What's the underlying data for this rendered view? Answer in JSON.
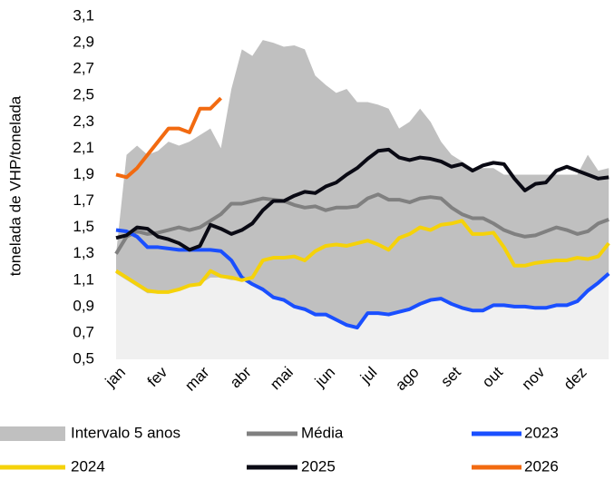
{
  "chart_data": {
    "type": "line",
    "y_label": "tonelada de VHP/tonelada",
    "categories": [
      "jan",
      null,
      null,
      null,
      "fev",
      null,
      null,
      null,
      "mar",
      null,
      null,
      null,
      "abr",
      null,
      null,
      null,
      "mai",
      null,
      null,
      null,
      "jun",
      null,
      null,
      null,
      "jul",
      null,
      null,
      null,
      "ago",
      null,
      null,
      null,
      "set",
      null,
      null,
      null,
      "out",
      null,
      null,
      null,
      "nov",
      null,
      null,
      null,
      "dez",
      null,
      null,
      null
    ],
    "ylim": [
      0.5,
      3.1
    ],
    "yticks": [
      {
        "value": 0.5,
        "label": "0,5"
      },
      {
        "value": 0.7,
        "label": "0,7"
      },
      {
        "value": 0.9,
        "label": "0,9"
      },
      {
        "value": 1.1,
        "label": "1,1"
      },
      {
        "value": 1.3,
        "label": "1,3"
      },
      {
        "value": 1.5,
        "label": "1,5"
      },
      {
        "value": 1.7,
        "label": "1,7"
      },
      {
        "value": 1.9,
        "label": "1,9"
      },
      {
        "value": 2.1,
        "label": "2,1"
      },
      {
        "value": 2.3,
        "label": "2,3"
      },
      {
        "value": 2.5,
        "label": "2,5"
      },
      {
        "value": 2.7,
        "label": "2,7"
      },
      {
        "value": 2.9,
        "label": "2,9"
      },
      {
        "value": 3.1,
        "label": "3,1"
      }
    ],
    "band": {
      "name": "Intervalo 5 anos",
      "color": "#c0c0c0",
      "lower_color": "#f0f0f0",
      "upper": [
        1.3,
        2.05,
        2.12,
        2.05,
        2.08,
        2.15,
        2.12,
        2.15,
        2.2,
        2.25,
        2.1,
        2.55,
        2.85,
        2.8,
        2.92,
        2.9,
        2.87,
        2.88,
        2.85,
        2.65,
        2.58,
        2.52,
        2.55,
        2.45,
        2.45,
        2.43,
        2.4,
        2.25,
        2.3,
        2.4,
        2.3,
        2.15,
        2.05,
        2.0,
        1.95,
        1.95,
        1.95,
        1.9,
        1.9,
        1.9,
        1.9,
        1.9,
        1.9,
        1.9,
        1.9,
        2.05,
        1.93,
        1.95
      ],
      "lower": [
        1.15,
        1.1,
        1.05,
        1.0,
        1.0,
        1.01,
        1.03,
        1.06,
        1.07,
        1.12,
        1.12,
        1.1,
        1.1,
        1.07,
        1.03,
        0.97,
        0.95,
        0.9,
        0.88,
        0.84,
        0.84,
        0.8,
        0.76,
        0.74,
        0.85,
        0.85,
        0.84,
        0.86,
        0.88,
        0.92,
        0.95,
        0.96,
        0.92,
        0.89,
        0.87,
        0.87,
        0.91,
        0.91,
        0.9,
        0.9,
        0.89,
        0.89,
        0.91,
        0.91,
        0.94,
        1.02,
        1.08,
        1.15
      ]
    },
    "series": [
      {
        "name": "Média",
        "color": "#808080",
        "values": [
          1.3,
          1.43,
          1.47,
          1.45,
          1.46,
          1.48,
          1.5,
          1.48,
          1.5,
          1.55,
          1.6,
          1.68,
          1.68,
          1.7,
          1.72,
          1.71,
          1.7,
          1.67,
          1.65,
          1.66,
          1.63,
          1.65,
          1.65,
          1.66,
          1.72,
          1.75,
          1.71,
          1.71,
          1.69,
          1.72,
          1.73,
          1.72,
          1.65,
          1.6,
          1.57,
          1.57,
          1.53,
          1.48,
          1.45,
          1.43,
          1.44,
          1.47,
          1.5,
          1.48,
          1.45,
          1.47,
          1.53,
          1.56
        ]
      },
      {
        "name": "2023",
        "color": "#1a4fff",
        "values": [
          1.48,
          1.47,
          1.43,
          1.35,
          1.35,
          1.34,
          1.33,
          1.33,
          1.33,
          1.33,
          1.32,
          1.25,
          1.12,
          1.07,
          1.03,
          0.97,
          0.95,
          0.9,
          0.88,
          0.84,
          0.84,
          0.8,
          0.76,
          0.74,
          0.85,
          0.85,
          0.84,
          0.86,
          0.88,
          0.92,
          0.95,
          0.96,
          0.92,
          0.89,
          0.87,
          0.87,
          0.91,
          0.91,
          0.9,
          0.9,
          0.89,
          0.89,
          0.91,
          0.91,
          0.94,
          1.02,
          1.08,
          1.15
        ]
      },
      {
        "name": "2024",
        "color": "#f5d20a",
        "values": [
          1.17,
          1.12,
          1.07,
          1.02,
          1.01,
          1.01,
          1.03,
          1.06,
          1.07,
          1.17,
          1.13,
          1.12,
          1.1,
          1.12,
          1.25,
          1.27,
          1.27,
          1.28,
          1.25,
          1.32,
          1.36,
          1.37,
          1.36,
          1.38,
          1.4,
          1.37,
          1.33,
          1.42,
          1.45,
          1.5,
          1.48,
          1.52,
          1.53,
          1.55,
          1.45,
          1.45,
          1.46,
          1.35,
          1.21,
          1.21,
          1.23,
          1.24,
          1.25,
          1.25,
          1.27,
          1.26,
          1.28,
          1.38
        ]
      },
      {
        "name": "2025",
        "color": "#0a0a14",
        "values": [
          1.42,
          1.44,
          1.5,
          1.49,
          1.43,
          1.41,
          1.38,
          1.33,
          1.36,
          1.52,
          1.49,
          1.45,
          1.48,
          1.53,
          1.63,
          1.7,
          1.7,
          1.74,
          1.77,
          1.76,
          1.81,
          1.84,
          1.9,
          1.95,
          2.02,
          2.08,
          2.09,
          2.03,
          2.01,
          2.03,
          2.02,
          2.0,
          1.96,
          1.98,
          1.93,
          1.97,
          1.99,
          1.98,
          1.87,
          1.78,
          1.83,
          1.84,
          1.93,
          1.96,
          1.93,
          1.9,
          1.87,
          1.88
        ]
      },
      {
        "name": "2026",
        "color": "#f26a10",
        "values": [
          1.9,
          1.88,
          1.95,
          2.05,
          2.15,
          2.25,
          2.25,
          2.22,
          2.4,
          2.4,
          2.48,
          null,
          null,
          null,
          null,
          null,
          null,
          null,
          null,
          null,
          null,
          null,
          null,
          null,
          null,
          null,
          null,
          null,
          null,
          null,
          null,
          null,
          null,
          null,
          null,
          null,
          null,
          null,
          null,
          null,
          null,
          null,
          null,
          null,
          null,
          null,
          null,
          null
        ]
      }
    ]
  }
}
